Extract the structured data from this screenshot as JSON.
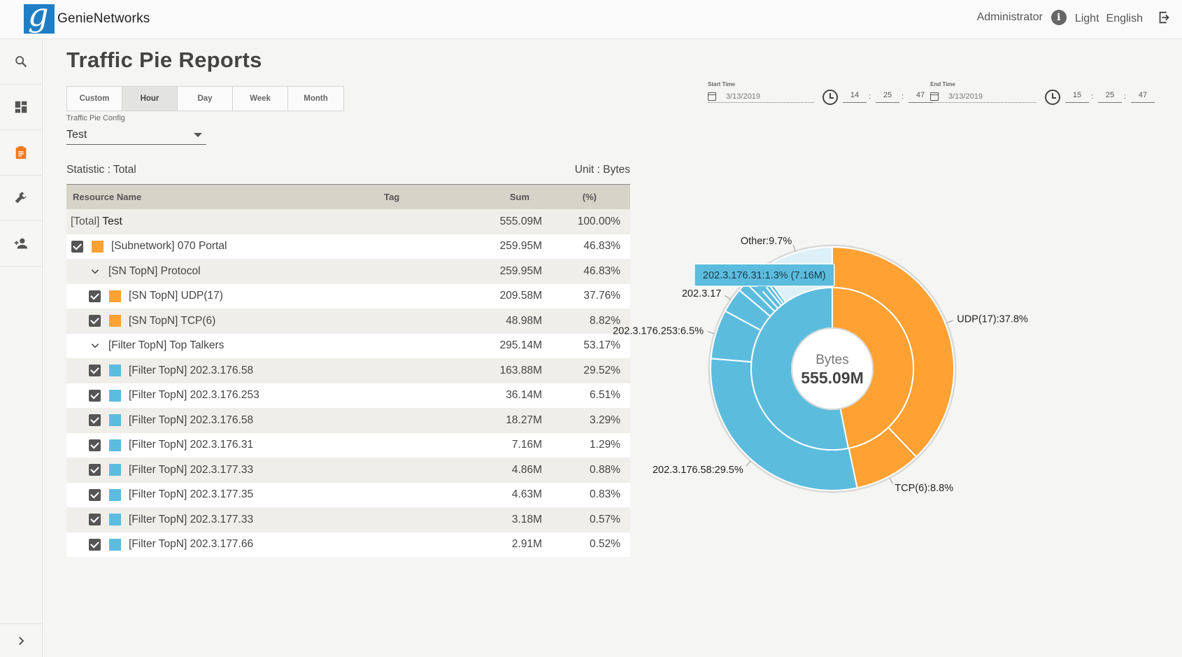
{
  "brand": {
    "name": "GenieNetworks",
    "logo_letter": "g"
  },
  "header": {
    "user": "Administrator",
    "theme": "Light",
    "language": "English"
  },
  "sidebar": {
    "items": [
      {
        "name": "search-icon",
        "active": false
      },
      {
        "name": "dashboard-icon",
        "active": false
      },
      {
        "name": "report-icon",
        "active": true
      },
      {
        "name": "wrench-icon",
        "active": false
      },
      {
        "name": "add-user-icon",
        "active": false
      }
    ],
    "expand_icon": "chevron-right-icon"
  },
  "page": {
    "title": "Traffic Pie Reports"
  },
  "range_tabs": [
    {
      "label": "Custom",
      "active": false
    },
    {
      "label": "Hour",
      "active": true
    },
    {
      "label": "Day",
      "active": false
    },
    {
      "label": "Week",
      "active": false
    },
    {
      "label": "Month",
      "active": false
    }
  ],
  "config": {
    "label": "Traffic Pie Config",
    "value": "Test"
  },
  "time": {
    "start": {
      "label": "Start Time",
      "date": "3/13/2019",
      "hh": "14",
      "mm": "25",
      "ss": "47"
    },
    "end": {
      "label": "End Time",
      "date": "3/13/2019",
      "hh": "15",
      "mm": "25",
      "ss": "47"
    }
  },
  "stats": {
    "statistic": "Statistic :  Total",
    "unit": "Unit :  Bytes"
  },
  "table": {
    "headers": {
      "name": "Resource Name",
      "tag": "Tag",
      "sum": "Sum",
      "pct": "(%)"
    },
    "rows": [
      {
        "kind": "total",
        "prefix": "[Total]",
        "label": " Test",
        "tag": "",
        "sum": "555.09M",
        "pct": "100.00%"
      },
      {
        "kind": "item",
        "indent": 0,
        "color": "#ffa133",
        "label": "[Subnetwork] 070 Portal",
        "tag": "",
        "sum": "259.95M",
        "pct": "46.83%"
      },
      {
        "kind": "group",
        "indent": 1,
        "label": "[SN TopN] Protocol",
        "tag": "",
        "sum": "259.95M",
        "pct": "46.83%"
      },
      {
        "kind": "item",
        "indent": 1,
        "color": "#ffa133",
        "label": "[SN TopN] UDP(17)",
        "tag": "",
        "sum": "209.58M",
        "pct": "37.76%"
      },
      {
        "kind": "item",
        "indent": 1,
        "color": "#ffa133",
        "label": "[SN TopN] TCP(6)",
        "tag": "",
        "sum": "48.98M",
        "pct": "8.82%"
      },
      {
        "kind": "group",
        "indent": 1,
        "label": "[Filter TopN] Top Talkers",
        "tag": "",
        "sum": "295.14M",
        "pct": "53.17%"
      },
      {
        "kind": "item",
        "indent": 1,
        "color": "#5cbcde",
        "label": "[Filter TopN] 202.3.176.58",
        "tag": "",
        "sum": "163.88M",
        "pct": "29.52%"
      },
      {
        "kind": "item",
        "indent": 1,
        "color": "#5cbcde",
        "label": "[Filter TopN] 202.3.176.253",
        "tag": "",
        "sum": "36.14M",
        "pct": "6.51%"
      },
      {
        "kind": "item",
        "indent": 1,
        "color": "#5cbcde",
        "label": "[Filter TopN] 202.3.176.58",
        "tag": "",
        "sum": "18.27M",
        "pct": "3.29%"
      },
      {
        "kind": "item",
        "indent": 1,
        "color": "#5cbcde",
        "label": "[Filter TopN] 202.3.176.31",
        "tag": "",
        "sum": "7.16M",
        "pct": "1.29%"
      },
      {
        "kind": "item",
        "indent": 1,
        "color": "#5cbcde",
        "label": "[Filter TopN] 202.3.177.33",
        "tag": "",
        "sum": "4.86M",
        "pct": "0.88%"
      },
      {
        "kind": "item",
        "indent": 1,
        "color": "#5cbcde",
        "label": "[Filter TopN] 202.3.177.35",
        "tag": "",
        "sum": "4.63M",
        "pct": "0.83%"
      },
      {
        "kind": "item",
        "indent": 1,
        "color": "#5cbcde",
        "label": "[Filter TopN] 202.3.177.33",
        "tag": "",
        "sum": "3.18M",
        "pct": "0.57%"
      },
      {
        "kind": "item",
        "indent": 1,
        "color": "#5cbcde",
        "label": "[Filter TopN] 202.3.177.66",
        "tag": "",
        "sum": "2.91M",
        "pct": "0.52%"
      }
    ]
  },
  "chart_data": {
    "type": "pie",
    "center": {
      "unit": "Bytes",
      "total": "555.09M"
    },
    "colors": {
      "orange": "#ffa133",
      "blue": "#5cbcde",
      "other": "#def0f7"
    },
    "inner": [
      {
        "name": "[Subnetwork] 070 Portal",
        "value": 46.83,
        "color": "#ffa133"
      },
      {
        "name": "[Filter TopN] Top Talkers",
        "value": 53.17,
        "color": "#5cbcde"
      }
    ],
    "outer": [
      {
        "label": "UDP(17):37.8%",
        "value": 37.76,
        "color": "#ffa133"
      },
      {
        "label": "TCP(6):8.8%",
        "value": 8.82,
        "color": "#ffa133"
      },
      {
        "label": "202.3.176.58:29.5%",
        "value": 29.52,
        "color": "#5cbcde"
      },
      {
        "label": "202.3.176.253:6.5%",
        "value": 6.51,
        "color": "#5cbcde"
      },
      {
        "label": "202.3.17",
        "value": 3.29,
        "color": "#5cbcde"
      },
      {
        "label": "",
        "value": 1.29,
        "color": "#5cbcde"
      },
      {
        "label": "",
        "value": 0.88,
        "color": "#5cbcde"
      },
      {
        "label": "",
        "value": 0.83,
        "color": "#5cbcde"
      },
      {
        "label": "",
        "value": 0.57,
        "color": "#5cbcde"
      },
      {
        "label": "",
        "value": 0.52,
        "color": "#5cbcde"
      },
      {
        "label": "Other:9.7%",
        "value": 9.7,
        "color": "#def0f7"
      }
    ],
    "tooltip": "202.3.176.31:1.3% (7.16M)"
  }
}
